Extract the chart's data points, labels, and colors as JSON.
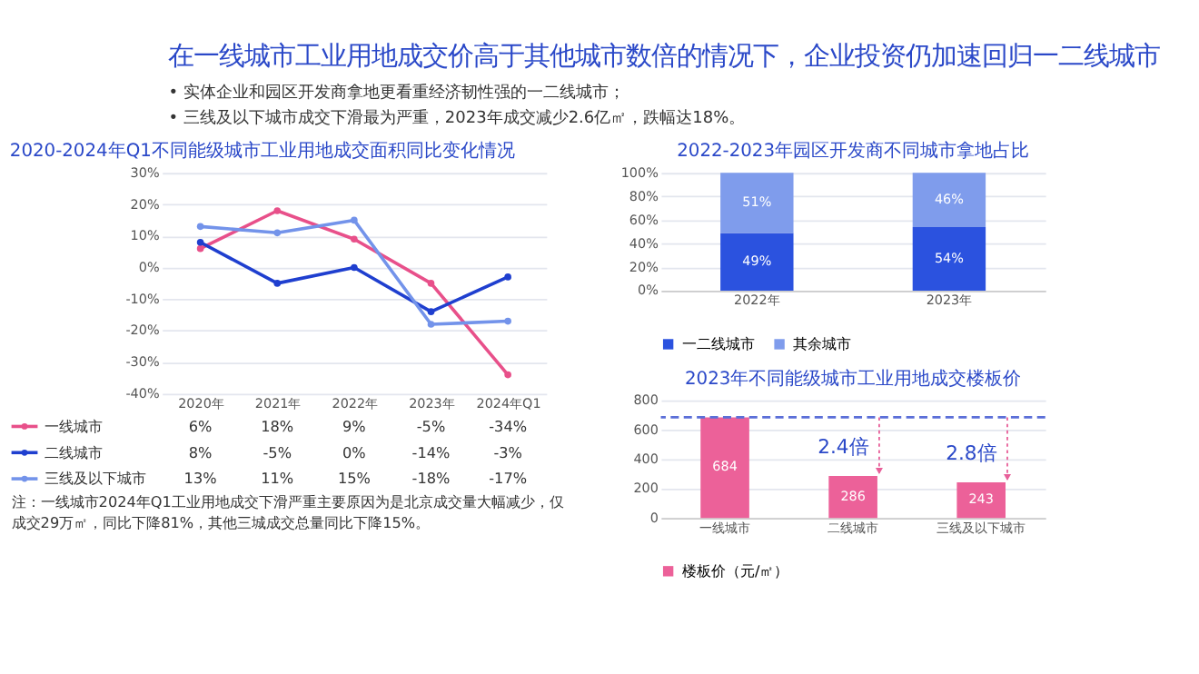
{
  "chart_data": [
    {
      "type": "other",
      "title": "在一线城市工业用地成交价高于其他城市数倍的情况下，企业投资仍加速回归一二线城市",
      "annotations": [
        "• 实体企业和园区开发商拿地更看重经济韧性强的一二线城市；",
        "• 三线及以下城市成交下滑最为严重，2023年成交减少2.6亿㎡，跌幅达18%。"
      ]
    },
    {
      "type": "line",
      "title": "2020-2024年Q1不同能级城市工业用地成交面积同比变化情况",
      "categories": [
        "2020年",
        "2021年",
        "2022年",
        "2023年",
        "2024年Q1"
      ],
      "series": [
        {
          "name": "一线城市",
          "color": "#e8508a",
          "values": [
            6,
            18,
            9,
            -5,
            -34
          ],
          "value_labels": [
            "6%",
            "18%",
            "9%",
            "-5%",
            "-34%"
          ]
        },
        {
          "name": "二线城市",
          "color": "#1f3fcf",
          "values": [
            8,
            -5,
            0,
            -14,
            -3
          ],
          "value_labels": [
            "8%",
            "-5%",
            "0%",
            "-14%",
            "-3%"
          ]
        },
        {
          "name": "三线及以下城市",
          "color": "#7393ea",
          "values": [
            13,
            11,
            15,
            -18,
            -17
          ],
          "value_labels": [
            "13%",
            "11%",
            "15%",
            "-18%",
            "-17%"
          ]
        }
      ],
      "ylim": [
        -40,
        30
      ],
      "yticks": [
        {
          "value": -40,
          "label": "-40%"
        },
        {
          "value": -30,
          "label": "-30%"
        },
        {
          "value": -20,
          "label": "-20%"
        },
        {
          "value": -10,
          "label": "-10%"
        },
        {
          "value": 0,
          "label": "0%"
        },
        {
          "value": 10,
          "label": "10%"
        },
        {
          "value": 20,
          "label": "20%"
        },
        {
          "value": 30,
          "label": "30%"
        }
      ],
      "grid": "y",
      "marker": "circle",
      "line_style": "solid",
      "legend": "bottom",
      "annotations": [
        "注：一线城市2024年Q1工业用地成交下滑严重主要原因为是北京成交量大幅减少，仅成交29万㎡，同比下降81%，其他三城成交总量同比下降15%。"
      ]
    },
    {
      "type": "bar",
      "title": "2022-2023年园区开发商不同城市拿地占比",
      "stacked": true,
      "categories": [
        "2022年",
        "2023年"
      ],
      "series": [
        {
          "name": "一二线城市",
          "color": "#2b52df",
          "values": [
            49,
            54
          ],
          "value_labels": [
            "49%",
            "54%"
          ]
        },
        {
          "name": "其余城市",
          "color": "#7f9cec",
          "values": [
            51,
            46
          ],
          "value_labels": [
            "51%",
            "46%"
          ]
        }
      ],
      "ylim": [
        0,
        100
      ],
      "yticks": [
        {
          "value": 0,
          "label": "0%"
        },
        {
          "value": 20,
          "label": "20%"
        },
        {
          "value": 40,
          "label": "40%"
        },
        {
          "value": 60,
          "label": "60%"
        },
        {
          "value": 80,
          "label": "80%"
        },
        {
          "value": 100,
          "label": "100%"
        }
      ],
      "grid": "y",
      "legend": "bottom"
    },
    {
      "type": "bar",
      "title": "2023年不同能级城市工业用地成交楼板价",
      "categories": [
        "一线城市",
        "二线城市",
        "三线及以下城市"
      ],
      "series": [
        {
          "name": "楼板价（元/㎡）",
          "color": "#ec6199",
          "values": [
            684,
            286,
            243
          ]
        }
      ],
      "data_labels": true,
      "ylim": [
        0,
        800
      ],
      "yticks": [
        0,
        200,
        400,
        600,
        800
      ],
      "grid": "y",
      "legend": "bottom",
      "ref_lines": [
        {
          "axis": "y",
          "value": 684,
          "color": "#5b6fd8",
          "line_style": "dashed"
        }
      ],
      "annotations": [
        {
          "text": "2.4倍",
          "x": "二线城市",
          "y": 286
        },
        {
          "text": "2.8倍",
          "x": "三线及以下城市",
          "y": 243
        }
      ]
    }
  ]
}
